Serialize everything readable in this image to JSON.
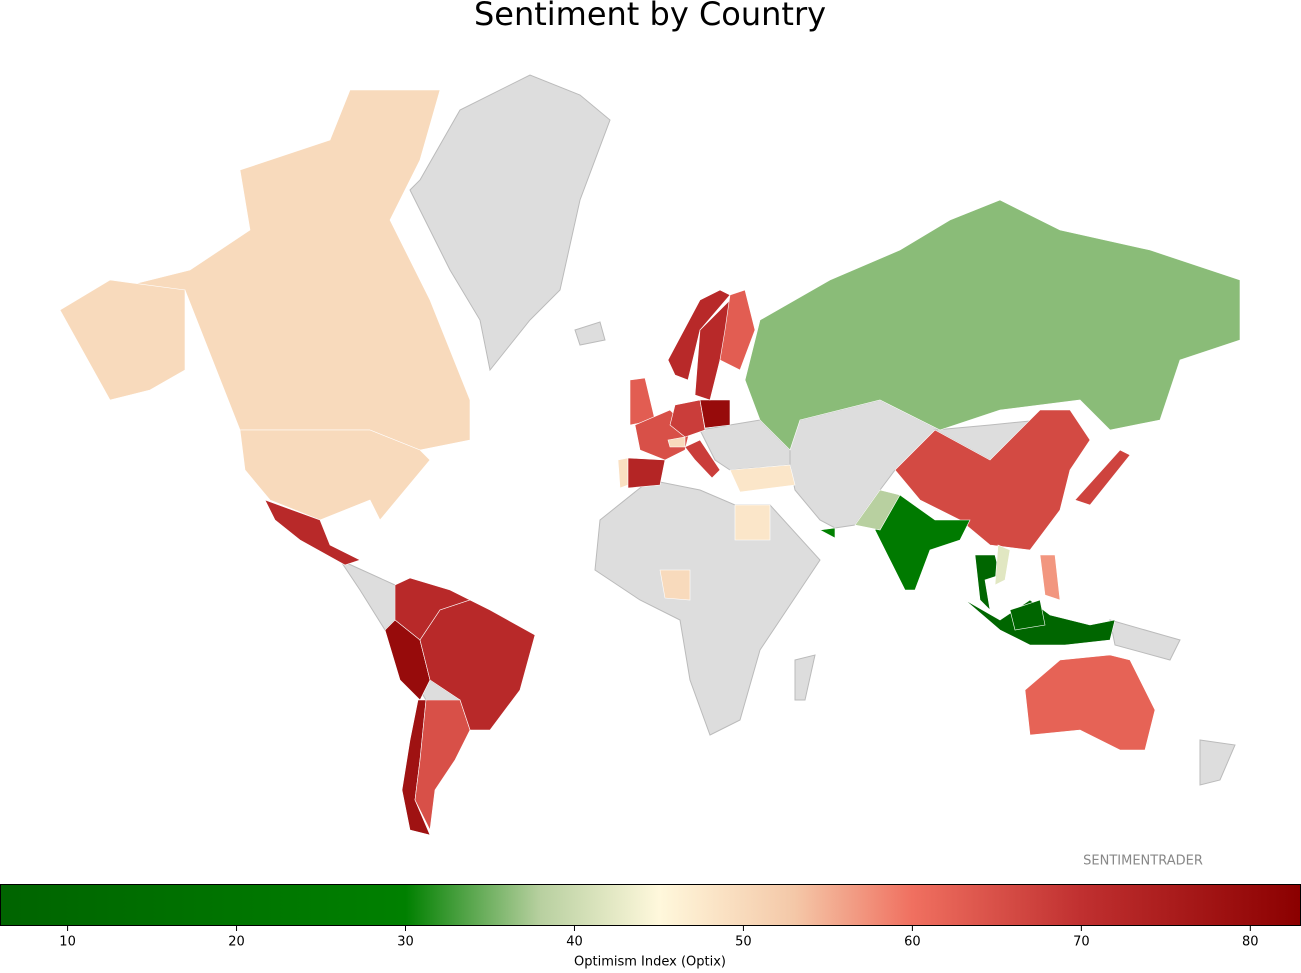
{
  "chart_data": {
    "type": "choropleth",
    "title": "Sentiment by Country",
    "annotation": "SENTIMENTRADER",
    "values": [
      50,
      50,
      50,
      72,
      72,
      80,
      72,
      78,
      65,
      63,
      49,
      73,
      65,
      50,
      68,
      80,
      68,
      72,
      72,
      63,
      48,
      48,
      36,
      66,
      25,
      38,
      8,
      42,
      57,
      67,
      8,
      8,
      62,
      30,
      50
    ],
    "missing_color": "#dddddd",
    "border_color": "#bbbbbb",
    "colorbar": {
      "label": "Optimism Index (Optix)",
      "clim": [
        6,
        83
      ],
      "ticks": [
        10,
        20,
        30,
        40,
        50,
        60,
        70,
        80
      ],
      "colorscale": [
        [
          6,
          "#006400"
        ],
        [
          30,
          "#008000"
        ],
        [
          38,
          "#b8d0a0"
        ],
        [
          45,
          "#fff8dc"
        ],
        [
          53,
          "#f4c8a8"
        ],
        [
          60,
          "#f07060"
        ],
        [
          70,
          "#c03030"
        ],
        [
          83,
          "#8b0000"
        ]
      ]
    }
  }
}
